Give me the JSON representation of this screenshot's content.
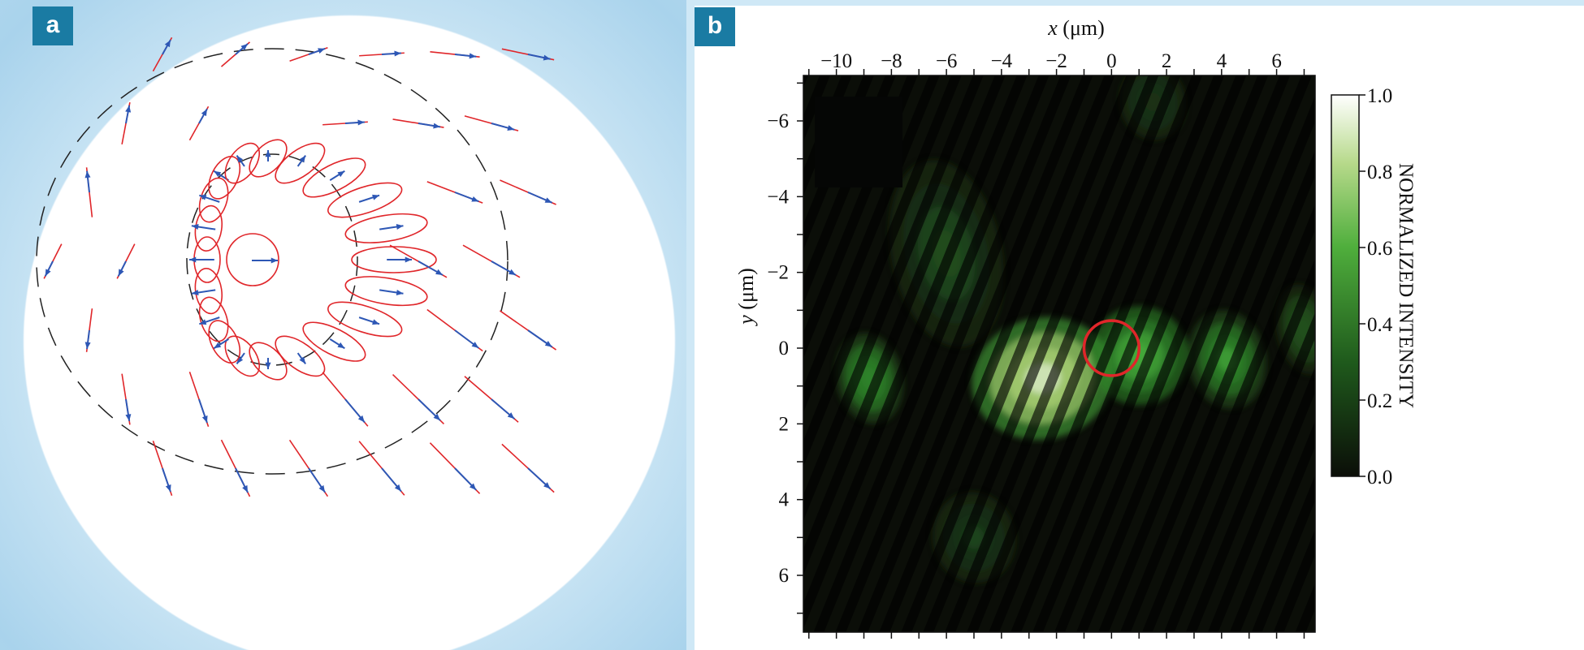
{
  "panel_a": {
    "tag": "a",
    "icon": "polarization-field-diagram"
  },
  "panel_b": {
    "tag": "b",
    "x_label_var": "x",
    "x_label_unit": " (μm)",
    "y_label_var": "y",
    "y_label_unit": " (μm)",
    "colorbar_label": "NORMALIZED INTENSITY",
    "colors": {
      "low": "#0b0e08",
      "mid": "#3fa83a",
      "high": "#ffffff",
      "marker": "#e0262a"
    }
  },
  "chart_data": {
    "type": "heatmap",
    "title": "",
    "xlabel": "x (μm)",
    "ylabel": "y (μm)",
    "x_ticks": [
      -10,
      -8,
      -6,
      -4,
      -2,
      0,
      2,
      4,
      6
    ],
    "y_ticks": [
      -6,
      -4,
      -2,
      0,
      2,
      4,
      6
    ],
    "xlim": [
      -11.2,
      7.4
    ],
    "ylim": [
      -7.2,
      7.5
    ],
    "y_axis_direction": "down",
    "colorbar": {
      "ticks": [
        0.0,
        0.2,
        0.4,
        0.6,
        0.8,
        1.0
      ],
      "tick_labels": [
        "0.0",
        "0.2",
        "0.4",
        "0.6",
        "0.8",
        "1.0"
      ],
      "range": [
        0,
        1
      ]
    },
    "marker": {
      "shape": "circle",
      "center": [
        0,
        0
      ],
      "radius": 1.0
    },
    "blobs": [
      {
        "x": -2.5,
        "y": 0.8,
        "sx": 2.6,
        "sy": 1.6,
        "peak": 1.0
      },
      {
        "x": 1.0,
        "y": 0.2,
        "sx": 1.8,
        "sy": 1.3,
        "peak": 0.45
      },
      {
        "x": 4.2,
        "y": 0.3,
        "sx": 1.4,
        "sy": 1.3,
        "peak": 0.4
      },
      {
        "x": -8.8,
        "y": 0.8,
        "sx": 1.2,
        "sy": 1.2,
        "peak": 0.35
      },
      {
        "x": -6.0,
        "y": -2.5,
        "sx": 2.0,
        "sy": 2.5,
        "peak": 0.15
      },
      {
        "x": -5.0,
        "y": 5.0,
        "sx": 1.5,
        "sy": 1.2,
        "peak": 0.12
      },
      {
        "x": 1.5,
        "y": -6.5,
        "sx": 1.2,
        "sy": 1.0,
        "peak": 0.08
      },
      {
        "x": 7.0,
        "y": -0.5,
        "sx": 1.0,
        "sy": 1.2,
        "peak": 0.18
      }
    ],
    "fringe_period_um": 0.75
  }
}
